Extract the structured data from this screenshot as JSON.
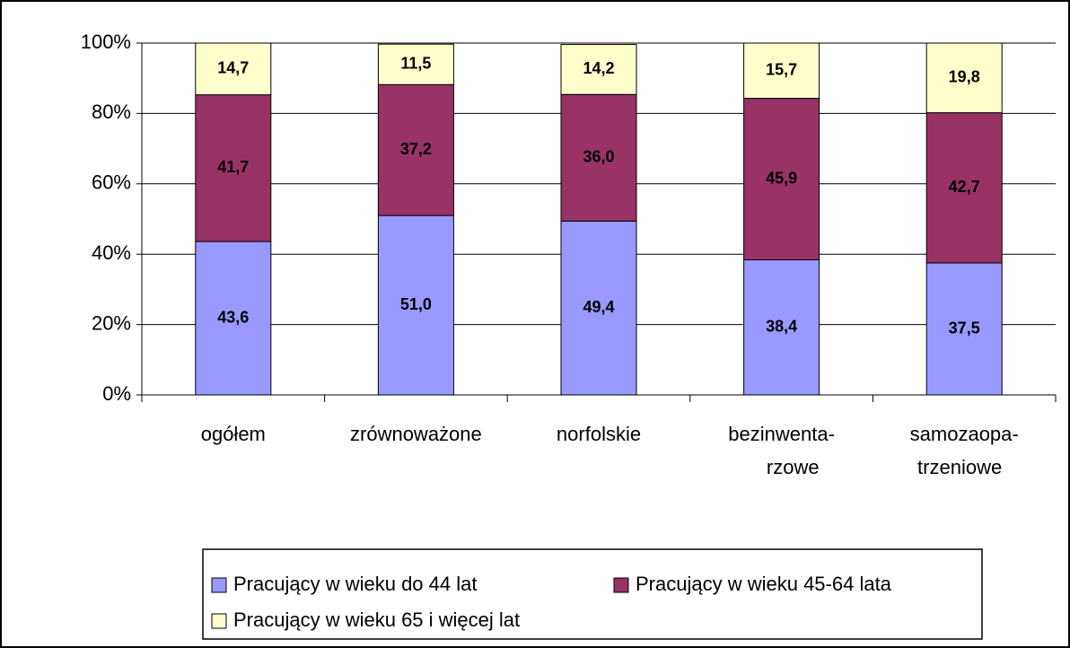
{
  "chart_data": {
    "type": "stacked_bar",
    "categories": [
      "ogółem",
      "zrównoważone",
      "norfolskie",
      "bezinwenta-\nrzowe",
      "samozaopa-\ntrzeniowe"
    ],
    "series": [
      {
        "name": "Pracujący w wieku do 44 lat",
        "color": "#9999ff",
        "values": [
          43.6,
          51.0,
          49.4,
          38.4,
          37.5
        ],
        "value_labels": [
          "43,6",
          "51,0",
          "49,4",
          "38,4",
          "37,5"
        ]
      },
      {
        "name": "Pracujący w wieku 45-64 lata",
        "color": "#993366",
        "values": [
          41.7,
          37.2,
          36.0,
          45.9,
          42.7
        ],
        "value_labels": [
          "41,7",
          "37,2",
          "36,0",
          "45,9",
          "42,7"
        ]
      },
      {
        "name": "Pracujący w wieku 65 i więcej lat",
        "color": "#ffffcc",
        "values": [
          14.7,
          11.5,
          14.2,
          15.7,
          19.8
        ],
        "value_labels": [
          "14,7",
          "11,5",
          "14,2",
          "15,7",
          "19,8"
        ]
      }
    ],
    "ylim": [
      0,
      100
    ],
    "yticks": [
      {
        "value": 0,
        "label": "0%"
      },
      {
        "value": 20,
        "label": "20%"
      },
      {
        "value": 40,
        "label": "40%"
      },
      {
        "value": 60,
        "label": "60%"
      },
      {
        "value": 80,
        "label": "80%"
      },
      {
        "value": 100,
        "label": "100%"
      }
    ],
    "grid": true
  }
}
